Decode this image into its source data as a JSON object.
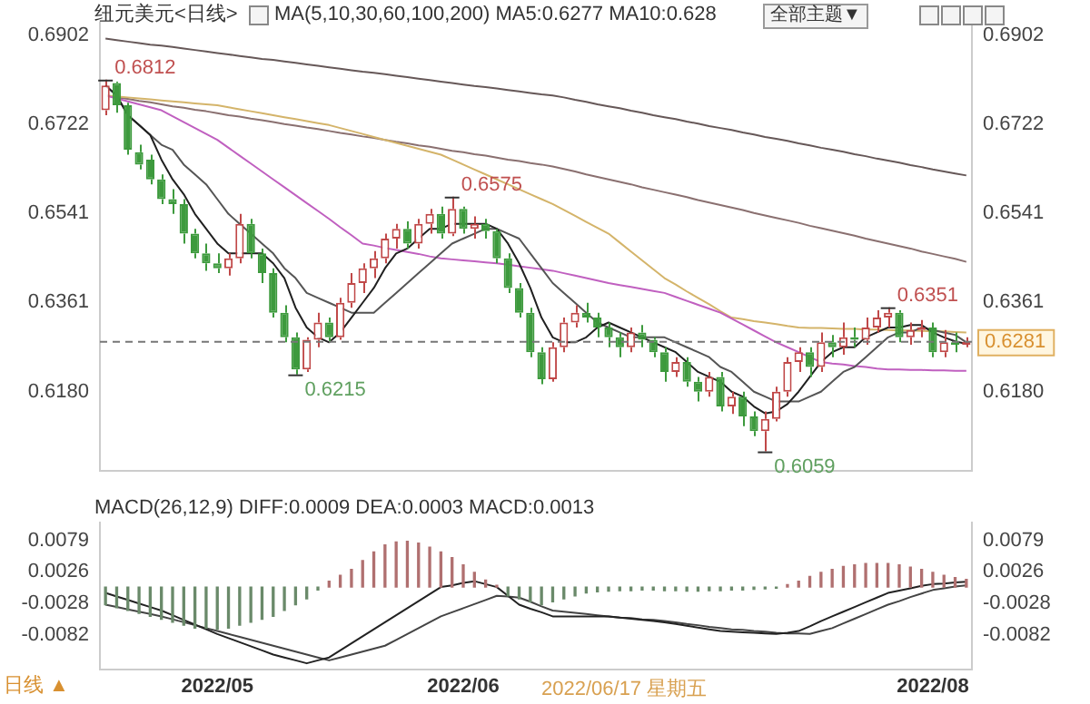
{
  "chart_data": [
    {
      "type": "candlestick",
      "title": "纽元美元<日线>",
      "subtitle": "MA(5,10,30,60,100,200) MA5:0.6277 MA10:0.628",
      "categories": [
        null,
        null,
        null,
        null,
        null,
        null,
        null,
        null,
        null,
        null,
        "2022/05",
        null,
        null,
        null,
        null,
        null,
        null,
        null,
        null,
        null,
        null,
        null,
        null,
        null,
        null,
        null,
        null,
        null,
        null,
        null,
        null,
        null,
        "2022/06",
        null,
        null,
        null,
        null,
        null,
        null,
        null,
        null,
        null,
        null,
        null,
        null,
        null,
        null,
        null,
        null,
        null,
        null,
        null,
        null,
        null,
        null,
        null,
        null,
        null,
        null,
        null,
        null,
        null,
        null,
        null,
        null,
        null,
        null,
        null,
        null,
        null,
        null,
        null,
        null,
        null,
        "2022/08",
        null,
        null,
        null
      ],
      "ohlc": [
        [
          0.675,
          0.6812,
          0.674,
          0.68
        ],
        [
          0.6805,
          0.6808,
          0.6745,
          0.676
        ],
        [
          0.676,
          0.6765,
          0.666,
          0.667
        ],
        [
          0.6665,
          0.668,
          0.663,
          0.664
        ],
        [
          0.665,
          0.666,
          0.66,
          0.661
        ],
        [
          0.661,
          0.662,
          0.656,
          0.657
        ],
        [
          0.657,
          0.659,
          0.654,
          0.656
        ],
        [
          0.656,
          0.657,
          0.648,
          0.65
        ],
        [
          0.65,
          0.651,
          0.645,
          0.646
        ],
        [
          0.646,
          0.648,
          0.6425,
          0.644
        ],
        [
          0.644,
          0.646,
          0.642,
          0.643
        ],
        [
          0.643,
          0.646,
          0.6415,
          0.645
        ],
        [
          0.645,
          0.654,
          0.644,
          0.652
        ],
        [
          0.652,
          0.653,
          0.645,
          0.646
        ],
        [
          0.646,
          0.647,
          0.64,
          0.642
        ],
        [
          0.642,
          0.643,
          0.633,
          0.634
        ],
        [
          0.634,
          0.6355,
          0.628,
          0.629
        ],
        [
          0.629,
          0.63,
          0.6215,
          0.6225
        ],
        [
          0.6225,
          0.629,
          0.622,
          0.6285
        ],
        [
          0.6285,
          0.634,
          0.627,
          0.632
        ],
        [
          0.632,
          0.633,
          0.628,
          0.629
        ],
        [
          0.629,
          0.637,
          0.6285,
          0.636
        ],
        [
          0.636,
          0.642,
          0.635,
          0.64
        ],
        [
          0.64,
          0.644,
          0.638,
          0.643
        ],
        [
          0.643,
          0.6465,
          0.641,
          0.645
        ],
        [
          0.645,
          0.65,
          0.644,
          0.649
        ],
        [
          0.649,
          0.652,
          0.647,
          0.651
        ],
        [
          0.651,
          0.6525,
          0.647,
          0.648
        ],
        [
          0.648,
          0.653,
          0.647,
          0.652
        ],
        [
          0.652,
          0.655,
          0.65,
          0.654
        ],
        [
          0.654,
          0.6555,
          0.649,
          0.65
        ],
        [
          0.65,
          0.6575,
          0.6495,
          0.655
        ],
        [
          0.655,
          0.6555,
          0.65,
          0.651
        ],
        [
          0.651,
          0.6535,
          0.649,
          0.652
        ],
        [
          0.652,
          0.653,
          0.649,
          0.6505
        ],
        [
          0.6505,
          0.651,
          0.644,
          0.645
        ],
        [
          0.645,
          0.646,
          0.638,
          0.639
        ],
        [
          0.639,
          0.64,
          0.633,
          0.634
        ],
        [
          0.634,
          0.635,
          0.625,
          0.626
        ],
        [
          0.626,
          0.627,
          0.6195,
          0.6205
        ],
        [
          0.6205,
          0.628,
          0.62,
          0.627
        ],
        [
          0.627,
          0.633,
          0.626,
          0.632
        ],
        [
          0.632,
          0.6355,
          0.631,
          0.634
        ],
        [
          0.634,
          0.636,
          0.632,
          0.633
        ],
        [
          0.633,
          0.634,
          0.629,
          0.631
        ],
        [
          0.631,
          0.632,
          0.627,
          0.629
        ],
        [
          0.629,
          0.63,
          0.625,
          0.627
        ],
        [
          0.627,
          0.631,
          0.626,
          0.63
        ],
        [
          0.63,
          0.6315,
          0.627,
          0.6285
        ],
        [
          0.6285,
          0.629,
          0.625,
          0.626
        ],
        [
          0.626,
          0.627,
          0.62,
          0.622
        ],
        [
          0.622,
          0.625,
          0.621,
          0.624
        ],
        [
          0.624,
          0.625,
          0.619,
          0.62
        ],
        [
          0.62,
          0.621,
          0.616,
          0.618
        ],
        [
          0.618,
          0.622,
          0.617,
          0.621
        ],
        [
          0.621,
          0.622,
          0.614,
          0.615
        ],
        [
          0.615,
          0.618,
          0.6135,
          0.617
        ],
        [
          0.617,
          0.618,
          0.611,
          0.613
        ],
        [
          0.613,
          0.614,
          0.609,
          0.61
        ],
        [
          0.61,
          0.614,
          0.6059,
          0.6125
        ],
        [
          0.6125,
          0.619,
          0.612,
          0.618
        ],
        [
          0.618,
          0.625,
          0.617,
          0.624
        ],
        [
          0.624,
          0.627,
          0.622,
          0.626
        ],
        [
          0.626,
          0.627,
          0.621,
          0.623
        ],
        [
          0.623,
          0.63,
          0.622,
          0.628
        ],
        [
          0.628,
          0.6295,
          0.625,
          0.627
        ],
        [
          0.627,
          0.632,
          0.6255,
          0.629
        ],
        [
          0.629,
          0.631,
          0.627,
          0.6285
        ],
        [
          0.6285,
          0.633,
          0.6275,
          0.631
        ],
        [
          0.631,
          0.6345,
          0.63,
          0.633
        ],
        [
          0.633,
          0.6351,
          0.631,
          0.634
        ],
        [
          0.634,
          0.6345,
          0.628,
          0.629
        ],
        [
          0.629,
          0.632,
          0.6275,
          0.6305
        ],
        [
          0.6305,
          0.6325,
          0.629,
          0.631
        ],
        [
          0.631,
          0.632,
          0.625,
          0.626
        ],
        [
          0.626,
          0.6305,
          0.625,
          0.628
        ],
        [
          0.628,
          0.63,
          0.626,
          0.6275
        ],
        [
          0.6275,
          0.629,
          0.627,
          0.6281
        ]
      ],
      "colors": [
        "#c04848",
        "#3d9a3d",
        "#3d9a3d",
        "#3d9a3d",
        "#3d9a3d",
        "#3d9a3d",
        "#3d9a3d",
        "#3d9a3d",
        "#3d9a3d",
        "#3d9a3d",
        "#3d9a3d",
        "#c04848",
        "#c04848",
        "#3d9a3d",
        "#3d9a3d",
        "#3d9a3d",
        "#3d9a3d",
        "#3d9a3d",
        "#c04848",
        "#c04848",
        "#3d9a3d",
        "#c04848",
        "#c04848",
        "#c04848",
        "#c04848",
        "#c04848",
        "#c04848",
        "#3d9a3d",
        "#c04848",
        "#c04848",
        "#3d9a3d",
        "#c04848",
        "#3d9a3d",
        "#c04848",
        "#3d9a3d",
        "#3d9a3d",
        "#3d9a3d",
        "#3d9a3d",
        "#3d9a3d",
        "#3d9a3d",
        "#c04848",
        "#c04848",
        "#c04848",
        "#3d9a3d",
        "#3d9a3d",
        "#3d9a3d",
        "#3d9a3d",
        "#c04848",
        "#3d9a3d",
        "#3d9a3d",
        "#3d9a3d",
        "#c04848",
        "#3d9a3d",
        "#3d9a3d",
        "#c04848",
        "#3d9a3d",
        "#c04848",
        "#3d9a3d",
        "#3d9a3d",
        "#c04848",
        "#c04848",
        "#c04848",
        "#c04848",
        "#3d9a3d",
        "#c04848",
        "#3d9a3d",
        "#c04848",
        "#3d9a3d",
        "#c04848",
        "#c04848",
        "#c04848",
        "#3d9a3d",
        "#c04848",
        "#c04848",
        "#3d9a3d",
        "#c04848",
        "#3d9a3d",
        "#c04848"
      ],
      "series": [
        {
          "type": "line",
          "color": "#202020",
          "values": [
            0.68,
            0.678,
            0.674,
            0.672,
            0.67,
            0.665,
            0.661,
            0.658,
            0.654,
            0.651,
            0.648,
            0.646,
            0.646,
            0.646,
            0.646,
            0.644,
            0.641,
            0.635,
            0.631,
            0.629,
            0.628,
            0.63,
            0.633,
            0.636,
            0.639,
            0.643,
            0.646,
            0.647,
            0.649,
            0.651,
            0.651,
            0.652,
            0.652,
            0.652,
            0.652,
            0.651,
            0.648,
            0.644,
            0.639,
            0.633,
            0.629,
            0.628,
            0.628,
            0.629,
            0.631,
            0.632,
            0.631,
            0.63,
            0.629,
            0.628,
            0.627,
            0.626,
            0.624,
            0.622,
            0.621,
            0.62,
            0.618,
            0.617,
            0.615,
            0.6136,
            0.614,
            0.6155,
            0.618,
            0.621,
            0.624,
            0.626,
            0.627,
            0.627,
            0.629,
            0.63,
            0.631,
            0.631,
            0.6315,
            0.6315,
            0.63,
            0.629,
            0.6282,
            0.6277
          ]
        },
        {
          "type": "line",
          "color": "#555555",
          "values": [
            0.68,
            0.678,
            0.674,
            0.672,
            0.67,
            0.668,
            0.667,
            0.664,
            0.662,
            0.66,
            0.657,
            0.654,
            0.652,
            0.65,
            0.648,
            0.646,
            0.643,
            0.641,
            0.638,
            0.637,
            0.636,
            0.635,
            0.634,
            0.634,
            0.634,
            0.636,
            0.638,
            0.64,
            0.642,
            0.644,
            0.646,
            0.648,
            0.649,
            0.65,
            0.651,
            0.651,
            0.65,
            0.649,
            0.646,
            0.643,
            0.64,
            0.638,
            0.636,
            0.634,
            0.632,
            0.631,
            0.63,
            0.629,
            0.629,
            0.629,
            0.629,
            0.628,
            0.627,
            0.626,
            0.625,
            0.623,
            0.622,
            0.62,
            0.618,
            0.617,
            0.616,
            0.616,
            0.616,
            0.617,
            0.618,
            0.62,
            0.622,
            0.623,
            0.625,
            0.627,
            0.629,
            0.63,
            0.63,
            0.631,
            0.6305,
            0.63,
            0.6295,
            0.628
          ]
        },
        {
          "type": "line",
          "color": "#c060c0",
          "values": [
            0.678,
            0.6774,
            0.6768,
            0.6762,
            0.6756,
            0.675,
            0.6738,
            0.6726,
            0.6714,
            0.6702,
            0.669,
            0.6674,
            0.6658,
            0.6642,
            0.6626,
            0.661,
            0.6594,
            0.6578,
            0.6562,
            0.6546,
            0.653,
            0.6513,
            0.6497,
            0.648,
            0.6476,
            0.6471,
            0.6467,
            0.6463,
            0.6459,
            0.6454,
            0.645,
            0.6448,
            0.6446,
            0.6444,
            0.6442,
            0.644,
            0.6437,
            0.6434,
            0.6431,
            0.6428,
            0.6425,
            0.642,
            0.6415,
            0.641,
            0.6405,
            0.64,
            0.6396,
            0.6392,
            0.6388,
            0.6384,
            0.638,
            0.6372,
            0.6364,
            0.6356,
            0.6348,
            0.634,
            0.6328,
            0.6316,
            0.6304,
            0.6292,
            0.628,
            0.627,
            0.626,
            0.625,
            0.624,
            0.6237,
            0.6235,
            0.6232,
            0.623,
            0.6227,
            0.6225,
            0.6225,
            0.6224,
            0.6224,
            0.6223,
            0.6223,
            0.6222,
            0.6222
          ]
        },
        {
          "type": "line",
          "color": "#d4b46a",
          "values": [
            0.678,
            0.6778,
            0.6776,
            0.6774,
            0.6772,
            0.677,
            0.6768,
            0.6766,
            0.6764,
            0.6762,
            0.676,
            0.6756,
            0.6752,
            0.6748,
            0.6744,
            0.674,
            0.6736,
            0.6732,
            0.6728,
            0.6724,
            0.672,
            0.6714,
            0.6708,
            0.6702,
            0.6696,
            0.669,
            0.6684,
            0.6678,
            0.6672,
            0.6666,
            0.666,
            0.665,
            0.664,
            0.663,
            0.662,
            0.661,
            0.66,
            0.659,
            0.658,
            0.657,
            0.656,
            0.6548,
            0.6536,
            0.6524,
            0.6512,
            0.65,
            0.6482,
            0.6464,
            0.6446,
            0.6428,
            0.641,
            0.6397,
            0.6383,
            0.637,
            0.6357,
            0.6343,
            0.633,
            0.6327,
            0.6323,
            0.632,
            0.6317,
            0.6313,
            0.631,
            0.6309,
            0.6309,
            0.6308,
            0.6307,
            0.6307,
            0.6306,
            0.6306,
            0.6305,
            0.6304,
            0.6304,
            0.6303,
            0.6302,
            0.6302,
            0.6301,
            0.63
          ]
        },
        {
          "type": "line",
          "color": "#8a7070",
          "values": [
            0.678,
            0.6776,
            0.6773,
            0.6769,
            0.6766,
            0.6762,
            0.6758,
            0.6755,
            0.6751,
            0.6748,
            0.6744,
            0.674,
            0.6737,
            0.6733,
            0.673,
            0.6726,
            0.6722,
            0.6719,
            0.6715,
            0.6712,
            0.6708,
            0.6704,
            0.6701,
            0.6697,
            0.6694,
            0.669,
            0.6686,
            0.6683,
            0.6679,
            0.6676,
            0.6672,
            0.6668,
            0.6665,
            0.6661,
            0.6658,
            0.6654,
            0.665,
            0.6647,
            0.6643,
            0.664,
            0.6636,
            0.6631,
            0.6626,
            0.662,
            0.6615,
            0.661,
            0.6605,
            0.66,
            0.6594,
            0.6589,
            0.6584,
            0.6579,
            0.6574,
            0.6568,
            0.6563,
            0.6558,
            0.6553,
            0.6548,
            0.6542,
            0.6537,
            0.6532,
            0.6527,
            0.6522,
            0.6516,
            0.6511,
            0.6506,
            0.6501,
            0.6496,
            0.649,
            0.6485,
            0.648,
            0.6475,
            0.647,
            0.6464,
            0.6459,
            0.6454,
            0.6449,
            0.6443
          ]
        },
        {
          "type": "line",
          "color": "#665858",
          "values": [
            0.6895,
            0.6892,
            0.6889,
            0.6886,
            0.6883,
            0.6881,
            0.6878,
            0.6875,
            0.6872,
            0.6869,
            0.6866,
            0.6863,
            0.686,
            0.6857,
            0.6854,
            0.6852,
            0.6849,
            0.6846,
            0.6843,
            0.684,
            0.6837,
            0.6834,
            0.6831,
            0.6828,
            0.6826,
            0.6823,
            0.682,
            0.6817,
            0.6814,
            0.6811,
            0.6808,
            0.6805,
            0.6802,
            0.6799,
            0.6797,
            0.6794,
            0.6791,
            0.6788,
            0.6785,
            0.6782,
            0.678,
            0.6776,
            0.6771,
            0.6767,
            0.6762,
            0.6758,
            0.6754,
            0.6749,
            0.6745,
            0.674,
            0.6736,
            0.6732,
            0.6727,
            0.6723,
            0.6718,
            0.6714,
            0.671,
            0.6705,
            0.6701,
            0.6696,
            0.6692,
            0.6688,
            0.6683,
            0.6679,
            0.6674,
            0.667,
            0.6666,
            0.6661,
            0.6657,
            0.6652,
            0.6648,
            0.6644,
            0.6639,
            0.6635,
            0.663,
            0.6626,
            0.6622,
            0.6618
          ]
        }
      ],
      "ylim": [
        0.602,
        0.6927
      ],
      "yticks": [
        0.6902,
        0.6722,
        0.6541,
        0.6361,
        {
          "value": 0.618,
          "label": "0.6180"
        }
      ],
      "y2lim": [
        0.602,
        0.6927
      ],
      "y2ticks": [
        0.6902,
        0.6722,
        0.6541,
        0.6361,
        {
          "value": 0.618,
          "label": "0.6180"
        }
      ],
      "tick_labels": "y",
      "ref_lines": [
        {
          "axis": "y",
          "value": 0.6281,
          "label": "0.6281",
          "color": "#777777",
          "line_style": "dashed"
        }
      ],
      "annotations": [
        "0.6812",
        "0.6575",
        "0.6215",
        "0.6059",
        "0.6351",
        "全部主题▼"
      ]
    },
    {
      "type": "bar",
      "subtitle": "MACD(26,12,9) DIFF:0.0009 DEA:0.0003 MACD:0.0013",
      "categories": [
        null,
        null,
        null,
        null,
        null,
        null,
        null,
        null,
        null,
        null,
        "2022/05",
        null,
        null,
        null,
        null,
        null,
        null,
        null,
        null,
        null,
        null,
        null,
        null,
        null,
        null,
        null,
        null,
        null,
        null,
        null,
        null,
        null,
        "2022/06",
        null,
        null,
        null,
        null,
        null,
        null,
        null,
        null,
        null,
        null,
        null,
        null,
        null,
        null,
        null,
        null,
        null,
        null,
        null,
        null,
        null,
        null,
        null,
        null,
        null,
        null,
        null,
        null,
        null,
        null,
        null,
        null,
        null,
        null,
        null,
        null,
        null,
        null,
        null,
        null,
        null,
        "2022/08",
        null,
        null,
        null
      ],
      "series": [
        {
          "type": "bar",
          "colors": [
            "#6a8a6a",
            "#6a8a6a",
            "#6a8a6a",
            "#6a8a6a",
            "#6a8a6a",
            "#6a8a6a",
            "#6a8a6a",
            "#6a8a6a",
            "#6a8a6a",
            "#6a8a6a",
            "#6a8a6a",
            "#6a8a6a",
            "#6a8a6a",
            "#6a8a6a",
            "#6a8a6a",
            "#6a8a6a",
            "#6a8a6a",
            "#6a8a6a",
            "#6a8a6a",
            "#6a8a6a",
            "#b07070",
            "#b07070",
            "#b07070",
            "#b07070",
            "#b07070",
            "#b07070",
            "#b07070",
            "#b07070",
            "#b07070",
            "#b07070",
            "#b07070",
            "#b07070",
            "#b07070",
            "#b07070",
            "#b07070",
            "#b07070",
            "#6a8a6a",
            "#6a8a6a",
            "#6a8a6a",
            "#6a8a6a",
            "#6a8a6a",
            "#6a8a6a",
            "#6a8a6a",
            "#6a8a6a",
            "#6a8a6a",
            "#6a8a6a",
            "#6a8a6a",
            "#6a8a6a",
            "#6a8a6a",
            "#6a8a6a",
            "#6a8a6a",
            "#6a8a6a",
            "#6a8a6a",
            "#6a8a6a",
            "#6a8a6a",
            "#6a8a6a",
            "#6a8a6a",
            "#6a8a6a",
            "#6a8a6a",
            "#6a8a6a",
            "#6a8a6a",
            "#b07070",
            "#b07070",
            "#b07070",
            "#b07070",
            "#b07070",
            "#b07070",
            "#b07070",
            "#b07070",
            "#b07070",
            "#b07070",
            "#b07070",
            "#b07070",
            "#b07070",
            "#b07070",
            "#b07070",
            "#b07070",
            "#b07070"
          ],
          "values": [
            -0.003,
            -0.0035,
            -0.004,
            -0.0045,
            -0.005,
            -0.0055,
            -0.006,
            -0.0065,
            -0.007,
            -0.007,
            -0.0072,
            -0.007,
            -0.0065,
            -0.006,
            -0.0055,
            -0.005,
            -0.004,
            -0.003,
            -0.002,
            -0.0005,
            0.001,
            0.002,
            0.003,
            0.0045,
            0.006,
            0.0072,
            0.0077,
            0.0078,
            0.0075,
            0.0068,
            0.006,
            0.005,
            0.0038,
            0.0025,
            0.0012,
            0.0003,
            -0.0015,
            -0.002,
            -0.0025,
            -0.003,
            -0.0025,
            -0.002,
            -0.0015,
            -0.001,
            -0.0008,
            -0.0007,
            -0.0006,
            -0.0006,
            -0.0005,
            -0.0005,
            -0.0006,
            -0.0006,
            -0.0007,
            -0.0007,
            -0.0006,
            -0.0006,
            -0.0005,
            -0.0005,
            -0.0004,
            -0.0003,
            -0.0002,
            0.0004,
            0.001,
            0.0018,
            0.0025,
            0.003,
            0.0035,
            0.0038,
            0.004,
            0.004,
            0.004,
            0.0038,
            0.0034,
            0.003,
            0.0025,
            0.002,
            0.0016,
            0.0013
          ]
        },
        {
          "type": "line",
          "color": "#222222",
          "values": [
            -0.001,
            -0.0016,
            -0.0022,
            -0.0028,
            -0.0034,
            -0.004,
            -0.0048,
            -0.0056,
            -0.0064,
            -0.0072,
            -0.008,
            -0.0087,
            -0.0094,
            -0.0101,
            -0.0108,
            -0.0115,
            -0.012,
            -0.0125,
            -0.013,
            -0.0125,
            -0.012,
            -0.0108,
            -0.0096,
            -0.0084,
            -0.0072,
            -0.006,
            -0.0048,
            -0.0036,
            -0.0024,
            -0.0012,
            0,
            0.0003,
            0.0007,
            0.001,
            0.0005,
            0,
            -0.0015,
            -0.003,
            -0.0037,
            -0.0043,
            -0.005,
            -0.005,
            -0.005,
            -0.005,
            -0.005,
            -0.005,
            -0.0052,
            -0.0054,
            -0.0056,
            -0.0058,
            -0.006,
            -0.0063,
            -0.0066,
            -0.0069,
            -0.0072,
            -0.0075,
            -0.0076,
            -0.0077,
            -0.0078,
            -0.0079,
            -0.008,
            -0.0078,
            -0.0075,
            -0.0067,
            -0.0058,
            -0.005,
            -0.0042,
            -0.0034,
            -0.0026,
            -0.0018,
            -0.001,
            -0.0006,
            -0.0002,
            0.0002,
            0.0005,
            0.0006,
            0.0008,
            0.0009
          ]
        },
        {
          "type": "line",
          "color": "#444444",
          "values": [
            -0.003,
            -0.0034,
            -0.0038,
            -0.0042,
            -0.0046,
            -0.005,
            -0.0055,
            -0.006,
            -0.0065,
            -0.007,
            -0.0075,
            -0.008,
            -0.0085,
            -0.009,
            -0.0095,
            -0.01,
            -0.0105,
            -0.011,
            -0.0115,
            -0.012,
            -0.0125,
            -0.012,
            -0.0115,
            -0.011,
            -0.0105,
            -0.01,
            -0.009,
            -0.008,
            -0.007,
            -0.006,
            -0.005,
            -0.0043,
            -0.0036,
            -0.0029,
            -0.0022,
            -0.0015,
            -0.0016,
            -0.0018,
            -0.0025,
            -0.0033,
            -0.004,
            -0.0042,
            -0.0044,
            -0.0046,
            -0.0048,
            -0.005,
            -0.0052,
            -0.0053,
            -0.0055,
            -0.0056,
            -0.0058,
            -0.006,
            -0.0063,
            -0.0065,
            -0.0068,
            -0.007,
            -0.0072,
            -0.0073,
            -0.0075,
            -0.0076,
            -0.0078,
            -0.0079,
            -0.0079,
            -0.008,
            -0.0075,
            -0.007,
            -0.0062,
            -0.0054,
            -0.0046,
            -0.0038,
            -0.003,
            -0.0024,
            -0.0017,
            -0.0011,
            -0.0005,
            -0.0002,
            0.0001,
            0.0003
          ]
        }
      ],
      "ylim": [
        -0.014,
        0.011
      ],
      "yticks": [
        0.0079,
        0.0026,
        -0.0028,
        -0.0082
      ],
      "y2lim": [
        -0.014,
        0.011
      ],
      "y2ticks": [
        0.0079,
        0.0026,
        -0.0028,
        -0.0082
      ],
      "annotations": [
        "日线 ▲",
        "2022/06/17 星期五"
      ]
    }
  ]
}
